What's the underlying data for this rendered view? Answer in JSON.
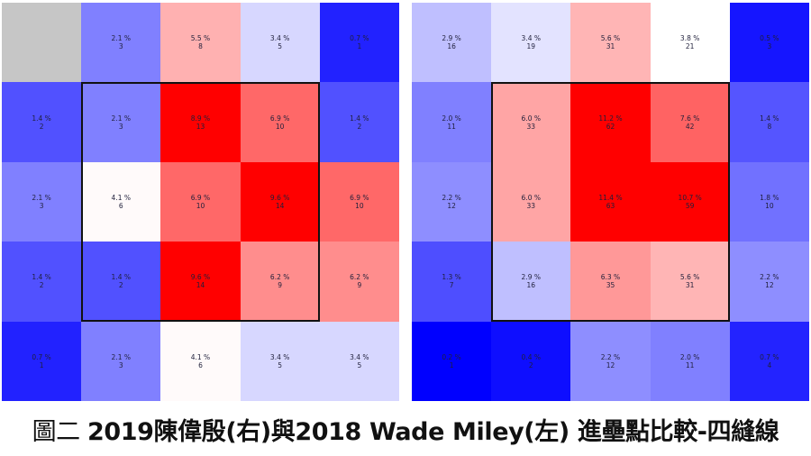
{
  "caption": {
    "prefix": "圖二 ",
    "main": "2019陳偉殷(右)與2018 Wade Miley(左) 進壘點比較-四縫線"
  },
  "colors": {
    "red": "#ff0000",
    "white": "#ffffff",
    "blue": "#0000ff",
    "empty": "#c6c6c6",
    "zone_border": "#111111"
  },
  "chart_data": [
    {
      "type": "heatmap",
      "rows": 5,
      "cols": 5,
      "color_scale": {
        "min": 0.2,
        "mid": 4.0,
        "max": 8.9
      },
      "strike_zone": {
        "row_start": 1,
        "row_end": 3,
        "col_start": 1,
        "col_end": 3
      },
      "cells": [
        [
          null,
          {
            "pct": "2.1 %",
            "count": "3"
          },
          {
            "pct": "5.5 %",
            "count": "8"
          },
          {
            "pct": "3.4 %",
            "count": "5"
          },
          {
            "pct": "0.7 %",
            "count": "1"
          }
        ],
        [
          {
            "pct": "1.4 %",
            "count": "2"
          },
          {
            "pct": "2.1 %",
            "count": "3"
          },
          {
            "pct": "8.9 %",
            "count": "13"
          },
          {
            "pct": "6.9 %",
            "count": "10"
          },
          {
            "pct": "1.4 %",
            "count": "2"
          }
        ],
        [
          {
            "pct": "2.1 %",
            "count": "3"
          },
          {
            "pct": "4.1 %",
            "count": "6"
          },
          {
            "pct": "6.9 %",
            "count": "10"
          },
          {
            "pct": "9.6 %",
            "count": "14"
          },
          {
            "pct": "6.9 %",
            "count": "10"
          }
        ],
        [
          {
            "pct": "1.4 %",
            "count": "2"
          },
          {
            "pct": "1.4 %",
            "count": "2"
          },
          {
            "pct": "9.6 %",
            "count": "14"
          },
          {
            "pct": "6.2 %",
            "count": "9"
          },
          {
            "pct": "6.2 %",
            "count": "9"
          }
        ],
        [
          {
            "pct": "0.7 %",
            "count": "1"
          },
          {
            "pct": "2.1 %",
            "count": "3"
          },
          {
            "pct": "4.1 %",
            "count": "6"
          },
          {
            "pct": "3.4 %",
            "count": "5"
          },
          {
            "pct": "3.4 %",
            "count": "5"
          }
        ]
      ]
    },
    {
      "type": "heatmap",
      "rows": 5,
      "cols": 5,
      "color_scale": {
        "min": 0.2,
        "mid": 3.8,
        "max": 10.0
      },
      "strike_zone": {
        "row_start": 1,
        "row_end": 3,
        "col_start": 1,
        "col_end": 3
      },
      "cells": [
        [
          {
            "pct": "2.9 %",
            "count": "16"
          },
          {
            "pct": "3.4 %",
            "count": "19"
          },
          {
            "pct": "5.6 %",
            "count": "31"
          },
          {
            "pct": "3.8 %",
            "count": "21"
          },
          {
            "pct": "0.5 %",
            "count": "3"
          }
        ],
        [
          {
            "pct": "2.0 %",
            "count": "11"
          },
          {
            "pct": "6.0 %",
            "count": "33"
          },
          {
            "pct": "11.2 %",
            "count": "62"
          },
          {
            "pct": "7.6 %",
            "count": "42"
          },
          {
            "pct": "1.4 %",
            "count": "8"
          }
        ],
        [
          {
            "pct": "2.2 %",
            "count": "12"
          },
          {
            "pct": "6.0 %",
            "count": "33"
          },
          {
            "pct": "11.4 %",
            "count": "63"
          },
          {
            "pct": "10.7 %",
            "count": "59"
          },
          {
            "pct": "1.8 %",
            "count": "10"
          }
        ],
        [
          {
            "pct": "1.3 %",
            "count": "7"
          },
          {
            "pct": "2.9 %",
            "count": "16"
          },
          {
            "pct": "6.3 %",
            "count": "35"
          },
          {
            "pct": "5.6 %",
            "count": "31"
          },
          {
            "pct": "2.2 %",
            "count": "12"
          }
        ],
        [
          {
            "pct": "0.2 %",
            "count": "1"
          },
          {
            "pct": "0.4 %",
            "count": "2"
          },
          {
            "pct": "2.2 %",
            "count": "12"
          },
          {
            "pct": "2.0 %",
            "count": "11"
          },
          {
            "pct": "0.7 %",
            "count": "4"
          }
        ]
      ]
    }
  ]
}
